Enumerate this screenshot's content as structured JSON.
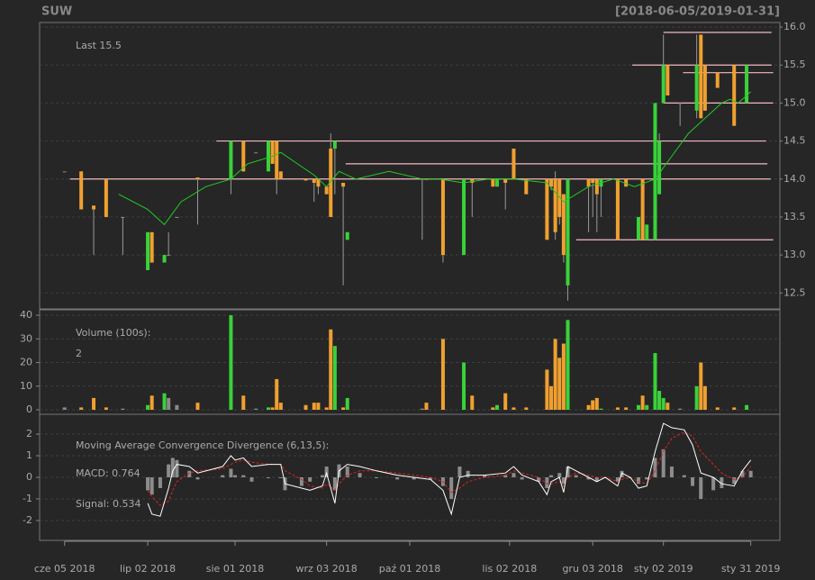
{
  "chart_data": [
    {
      "type": "candlestick",
      "title": "SUW",
      "subtitle": "[2018-06-05/2019-01-31]",
      "annotation": "Last 15.5",
      "up_color": "#39d23a",
      "down_color": "#f0a030",
      "flat_color": "#8a8a8a",
      "annotation_color": "#f0a030",
      "xlim": [
        -6,
        172
      ],
      "ylim": [
        12.29,
        16.06
      ],
      "y_axis_side": "right",
      "grid": true,
      "yticks": [
        12.5,
        {
          "value": 13,
          "label": "13.0"
        },
        13.5,
        {
          "value": 14,
          "label": "14.0"
        },
        14.5,
        {
          "value": 15,
          "label": "15.0"
        },
        15.5,
        {
          "value": 16,
          "label": "16.0"
        }
      ],
      "x": [
        0,
        4,
        7,
        10,
        14,
        20,
        21,
        24,
        25,
        27,
        32,
        40,
        43,
        46,
        49,
        50,
        51,
        52,
        58,
        60,
        61,
        63,
        64,
        65,
        67,
        68,
        86,
        87,
        91,
        96,
        98,
        103,
        104,
        106,
        108,
        111,
        116,
        117,
        118,
        119,
        120,
        121,
        126,
        127,
        128,
        129,
        133,
        135,
        138,
        139,
        140,
        142,
        143,
        144,
        145,
        148,
        152,
        153,
        154,
        157,
        161,
        164
      ],
      "open": [
        14.1,
        14.1,
        13.65,
        14.0,
        13.5,
        12.8,
        13.3,
        12.9,
        13.0,
        13.5,
        14.02,
        14.0,
        14.5,
        14.35,
        14.1,
        14.5,
        14.5,
        14.1,
        14.0,
        14.0,
        14.0,
        13.9,
        14.4,
        14.4,
        13.95,
        13.2,
        14.0,
        14.0,
        14.0,
        13.0,
        14.0,
        14.0,
        13.9,
        14.0,
        14.4,
        14.0,
        14.0,
        14.0,
        14.0,
        14.0,
        13.8,
        12.6,
        14.0,
        14.0,
        14.0,
        13.9,
        14.0,
        14.0,
        13.2,
        14.0,
        13.2,
        13.2,
        13.8,
        15.0,
        15.5,
        15.0,
        14.9,
        15.9,
        15.5,
        15.4,
        15.5,
        15.0
      ],
      "high": [
        14.1,
        14.1,
        13.65,
        14.0,
        13.5,
        13.3,
        13.3,
        13.0,
        13.3,
        13.5,
        14.02,
        14.5,
        14.5,
        14.35,
        14.5,
        14.5,
        14.5,
        14.1,
        14.0,
        14.0,
        14.0,
        13.9,
        14.6,
        14.5,
        13.95,
        13.3,
        14.0,
        14.0,
        14.0,
        14.0,
        14.0,
        14.0,
        14.0,
        14.0,
        14.4,
        14.0,
        14.0,
        14.0,
        14.1,
        14.0,
        13.8,
        14.0,
        14.0,
        14.0,
        14.0,
        14.0,
        14.0,
        14.0,
        13.5,
        14.0,
        13.4,
        15.0,
        14.6,
        15.9,
        15.5,
        15.0,
        15.9,
        15.9,
        15.5,
        15.4,
        15.5,
        15.5
      ],
      "low": [
        14.1,
        13.6,
        13.0,
        13.5,
        13.0,
        12.8,
        12.9,
        12.9,
        13.0,
        13.5,
        13.4,
        13.8,
        14.1,
        14.35,
        14.1,
        14.2,
        13.8,
        14.0,
        13.98,
        13.7,
        13.8,
        13.8,
        13.5,
        13.8,
        12.6,
        13.2,
        13.2,
        13.99,
        12.9,
        13.0,
        13.5,
        13.9,
        13.9,
        13.6,
        14.0,
        13.8,
        13.2,
        13.85,
        13.2,
        13.4,
        12.9,
        12.4,
        13.3,
        13.5,
        13.3,
        13.5,
        13.2,
        13.9,
        13.2,
        13.2,
        13.2,
        13.2,
        13.8,
        15.0,
        15.1,
        14.7,
        14.8,
        14.8,
        14.9,
        15.2,
        14.7,
        15.0
      ],
      "close": [
        14.1,
        13.6,
        13.6,
        13.5,
        13.5,
        13.3,
        12.9,
        13.0,
        13.0,
        13.5,
        14.0,
        14.5,
        14.1,
        14.35,
        14.5,
        14.2,
        14.0,
        14.0,
        13.98,
        13.95,
        13.9,
        13.8,
        13.5,
        14.5,
        13.9,
        13.3,
        14.0,
        13.99,
        13.0,
        14.0,
        13.95,
        13.9,
        14.0,
        13.95,
        14.0,
        13.8,
        13.2,
        13.9,
        13.3,
        13.5,
        13.0,
        14.0,
        13.9,
        13.95,
        13.8,
        14.0,
        13.2,
        13.9,
        13.5,
        13.2,
        13.4,
        15.0,
        14.5,
        15.5,
        15.1,
        15.0,
        15.5,
        14.8,
        14.9,
        15.2,
        14.7,
        15.5
      ],
      "ma": {
        "color": "#22cc22",
        "x": [
          13,
          20,
          24,
          28,
          34,
          40,
          44,
          50,
          52,
          56,
          60,
          63,
          66,
          70,
          78,
          86,
          90,
          96,
          102,
          108,
          116,
          120,
          126,
          132,
          137,
          142,
          146,
          150,
          154,
          158,
          160,
          162,
          164,
          165
        ],
        "values": [
          13.8,
          13.6,
          13.4,
          13.7,
          13.9,
          14.0,
          14.2,
          14.3,
          14.35,
          14.2,
          14.05,
          13.9,
          14.1,
          14.0,
          14.1,
          14.0,
          14.0,
          13.95,
          14.0,
          14.0,
          13.95,
          13.7,
          13.9,
          14.0,
          13.9,
          14.0,
          14.3,
          14.6,
          14.8,
          15.0,
          15.05,
          15.0,
          15.1,
          15.15
        ]
      },
      "lines": {
        "color": "#f4b8c0",
        "items": [
          {
            "y": 15.93,
            "x0": 144,
            "x1": 170
          },
          {
            "y": 15.5,
            "x0": 136.5,
            "x1": 170
          },
          {
            "y": 15.4,
            "x0": 148.7,
            "x1": 170.4
          },
          {
            "y": 15.0,
            "x0": 144,
            "x1": 170.4
          },
          {
            "y": 14.5,
            "x0": 36.5,
            "x1": 168.7
          },
          {
            "y": 14.2,
            "x0": 67.6,
            "x1": 169
          },
          {
            "y": 14.0,
            "x0": 1.3,
            "x1": 169.8
          },
          {
            "y": 13.2,
            "x0": 123,
            "x1": 170.4
          }
        ]
      }
    },
    {
      "type": "volume",
      "title": "Volume (100s):",
      "annotation": "2",
      "annotation_color": "#f0a030",
      "xlim": [
        -6,
        172
      ],
      "ylim": [
        -1.9,
        42.3
      ],
      "y_axis_side": "left",
      "grid": true,
      "yticks": [
        0,
        10,
        20,
        30,
        40
      ],
      "values": [
        1,
        1,
        5,
        1,
        0.5,
        2,
        6,
        7,
        5,
        2,
        3,
        40,
        6,
        0.5,
        1,
        1,
        13,
        3,
        2,
        3,
        3,
        1,
        34,
        27,
        1,
        5,
        0.5,
        3,
        30,
        20,
        6,
        1,
        2,
        7,
        1,
        1,
        17,
        10,
        30,
        22,
        28,
        38,
        2,
        4,
        5,
        0.5,
        1,
        1,
        2,
        6,
        2,
        24,
        8,
        5,
        3,
        0.5,
        10,
        20,
        10,
        1,
        1,
        2
      ]
    },
    {
      "type": "macd",
      "title": "Moving Average Convergence Divergence (6,13,5):",
      "macd_label": "MACD: 0.764",
      "signal_label": "Signal: 0.534",
      "macd_color": "#ffffff",
      "signal_color": "#e02020",
      "hist_color": "#8c8c8c",
      "xlim": [
        -6,
        172
      ],
      "ylim": [
        -2.92,
        2.92
      ],
      "y_axis_side": "left",
      "grid": true,
      "yticks": [
        -2,
        -1,
        0,
        1,
        2
      ],
      "xticks": [
        {
          "value": 0,
          "label": "cze 05 2018"
        },
        {
          "value": 20,
          "label": "lip 02 2018"
        },
        {
          "value": 41,
          "label": "sie 01 2018"
        },
        {
          "value": 63,
          "label": "wrz 03 2018"
        },
        {
          "value": 83,
          "label": "paź 01 2018"
        },
        {
          "value": 107,
          "label": "lis 02 2018"
        },
        {
          "value": 127,
          "label": "gru 03 2018"
        },
        {
          "value": 144,
          "label": "sty 02 2019"
        },
        {
          "value": 165,
          "label": "sty 31 2019"
        }
      ],
      "x": [
        20,
        21,
        23,
        25,
        26,
        27,
        30,
        32,
        38,
        40,
        41,
        43,
        45,
        49,
        52,
        53,
        57,
        59,
        62,
        63,
        65,
        66,
        68,
        71,
        75,
        80,
        84,
        88,
        91,
        93,
        95,
        97,
        101,
        106,
        108,
        110,
        114,
        116,
        117,
        119,
        120,
        121,
        123,
        126,
        128,
        130,
        133,
        134,
        136,
        138,
        140,
        142,
        144,
        146,
        149,
        151,
        153,
        156,
        158,
        161,
        163,
        165
      ],
      "macd": [
        -1.2,
        -1.7,
        -1.8,
        -0.5,
        0.3,
        0.6,
        0.5,
        0.2,
        0.5,
        1.0,
        0.8,
        0.9,
        0.5,
        0.6,
        0.6,
        -0.3,
        -0.5,
        -0.6,
        -0.4,
        0.2,
        -1.2,
        0.3,
        0.6,
        0.5,
        0.3,
        0.1,
        0.0,
        -0.1,
        -0.6,
        -1.7,
        0.0,
        0.1,
        0.1,
        0.2,
        0.5,
        0.1,
        -0.2,
        -0.8,
        -0.2,
        0.0,
        -0.7,
        0.5,
        0.3,
        0.0,
        -0.2,
        0.0,
        -0.4,
        0.2,
        0.0,
        -0.5,
        -0.4,
        1.2,
        2.5,
        2.3,
        2.2,
        1.5,
        0.2,
        0.0,
        -0.3,
        -0.4,
        0.3,
        0.8
      ],
      "signal": [
        -0.6,
        -0.9,
        -1.3,
        -1.1,
        -0.6,
        -0.2,
        0.2,
        0.3,
        0.4,
        0.6,
        0.7,
        0.8,
        0.7,
        0.6,
        0.6,
        0.3,
        -0.1,
        -0.4,
        -0.5,
        -0.3,
        -0.6,
        -0.3,
        0.1,
        0.3,
        0.3,
        0.2,
        0.1,
        0.0,
        -0.2,
        -0.7,
        -0.5,
        -0.2,
        0.0,
        0.1,
        0.3,
        0.2,
        0.0,
        -0.3,
        -0.3,
        -0.2,
        -0.4,
        0.0,
        0.2,
        0.1,
        0.0,
        0.0,
        -0.2,
        -0.1,
        0.0,
        -0.2,
        -0.3,
        0.3,
        1.2,
        1.8,
        2.1,
        1.9,
        1.2,
        0.6,
        0.2,
        -0.1,
        0.0,
        0.5
      ],
      "hist": [
        -0.6,
        -0.8,
        -0.5,
        0.6,
        0.9,
        0.8,
        0.3,
        -0.1,
        0.1,
        0.4,
        0.1,
        0.1,
        -0.2,
        0.0,
        0.0,
        -0.6,
        -0.4,
        -0.2,
        0.1,
        0.5,
        -0.6,
        0.6,
        0.5,
        0.2,
        0.0,
        -0.1,
        -0.1,
        -0.1,
        -0.4,
        -1.0,
        0.5,
        0.3,
        0.1,
        0.1,
        0.2,
        -0.1,
        -0.2,
        -0.5,
        0.1,
        0.2,
        -0.3,
        0.5,
        0.1,
        -0.1,
        -0.2,
        0.0,
        -0.2,
        0.3,
        0.0,
        -0.3,
        -0.1,
        0.9,
        1.3,
        0.5,
        0.1,
        -0.4,
        -1.0,
        -0.6,
        -0.5,
        -0.3,
        0.3,
        0.3
      ]
    }
  ]
}
